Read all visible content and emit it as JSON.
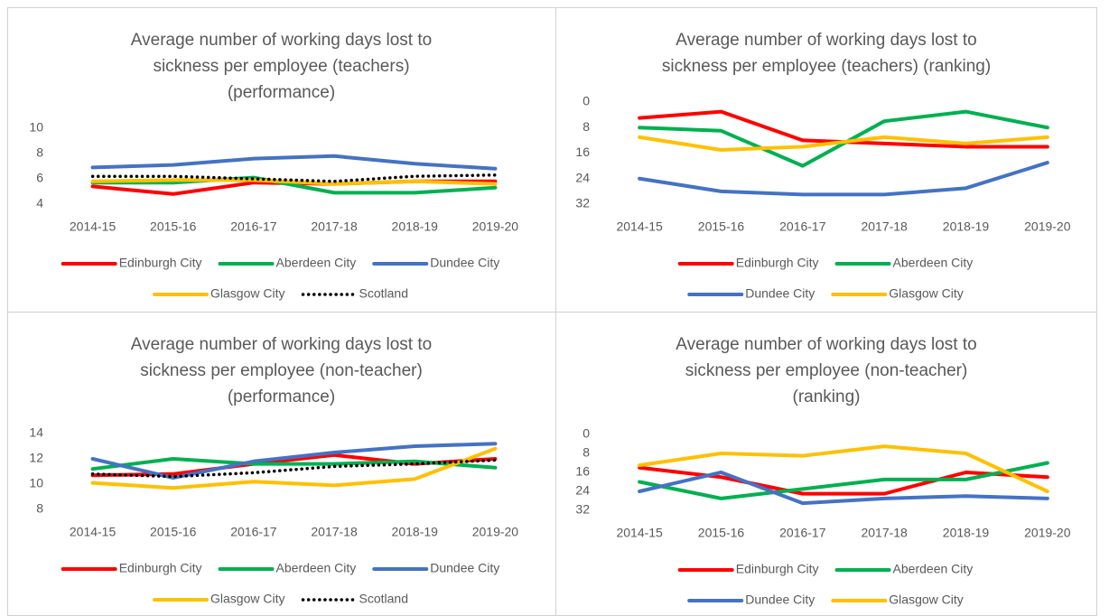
{
  "chart_data": [
    {
      "type": "line",
      "title": [
        "Average number of working days lost to",
        "sickness per employee (teachers)",
        "(performance)"
      ],
      "categories": [
        "2014-15",
        "2015-16",
        "2016-17",
        "2017-18",
        "2018-19",
        "2019-20"
      ],
      "ylim": [
        4,
        10
      ],
      "yticks": [
        4,
        6,
        8,
        10
      ],
      "series": [
        {
          "name": "Edinburgh City",
          "color": "#ff0000",
          "values": [
            5.4,
            4.8,
            5.7,
            5.6,
            5.8,
            5.8
          ]
        },
        {
          "name": "Aberdeen City",
          "color": "#00b050",
          "values": [
            5.7,
            5.7,
            6.1,
            4.9,
            4.9,
            5.3
          ]
        },
        {
          "name": "Dundee City",
          "color": "#4472c4",
          "values": [
            6.9,
            7.1,
            7.6,
            7.8,
            7.2,
            6.8
          ]
        },
        {
          "name": "Glasgow City",
          "color": "#ffc000",
          "values": [
            5.8,
            5.9,
            5.9,
            5.6,
            5.8,
            5.6
          ]
        },
        {
          "name": "Scotland",
          "color": "#000000",
          "line_style": "dotted",
          "values": [
            6.2,
            6.2,
            6.0,
            5.8,
            6.2,
            6.3
          ]
        }
      ]
    },
    {
      "type": "line",
      "title": [
        "Average number of working days lost to",
        "sickness per employee (teachers) (ranking)"
      ],
      "categories": [
        "2014-15",
        "2015-16",
        "2016-17",
        "2017-18",
        "2018-19",
        "2019-20"
      ],
      "ylim": [
        0,
        32
      ],
      "y_inverted": true,
      "yticks": [
        0,
        8,
        16,
        24,
        32
      ],
      "series": [
        {
          "name": "Edinburgh City",
          "color": "#ff0000",
          "values": [
            5,
            3,
            12,
            13,
            14,
            14
          ]
        },
        {
          "name": "Aberdeen City",
          "color": "#00b050",
          "values": [
            8,
            9,
            20,
            6,
            3,
            8
          ]
        },
        {
          "name": "Dundee City",
          "color": "#4472c4",
          "values": [
            24,
            28,
            29,
            29,
            27,
            19
          ]
        },
        {
          "name": "Glasgow City",
          "color": "#ffc000",
          "values": [
            11,
            15,
            14,
            11,
            13,
            11
          ]
        }
      ]
    },
    {
      "type": "line",
      "title": [
        "Average number of working days lost to",
        "sickness per employee (non-teacher)",
        "(performance)"
      ],
      "categories": [
        "2014-15",
        "2015-16",
        "2016-17",
        "2017-18",
        "2018-19",
        "2019-20"
      ],
      "ylim": [
        8,
        14
      ],
      "yticks": [
        8,
        10,
        12,
        14
      ],
      "series": [
        {
          "name": "Edinburgh City",
          "color": "#ff0000",
          "values": [
            10.7,
            10.8,
            11.6,
            12.3,
            11.6,
            12.0
          ]
        },
        {
          "name": "Aberdeen City",
          "color": "#00b050",
          "values": [
            11.2,
            12.0,
            11.6,
            11.6,
            11.8,
            11.3
          ]
        },
        {
          "name": "Dundee City",
          "color": "#4472c4",
          "values": [
            12.0,
            10.5,
            11.8,
            12.5,
            13.0,
            13.2
          ]
        },
        {
          "name": "Glasgow City",
          "color": "#ffc000",
          "values": [
            10.1,
            9.7,
            10.2,
            9.9,
            10.4,
            12.8
          ]
        },
        {
          "name": "Scotland",
          "color": "#000000",
          "line_style": "dotted",
          "values": [
            10.8,
            10.6,
            10.9,
            11.4,
            11.6,
            11.9
          ]
        }
      ]
    },
    {
      "type": "line",
      "title": [
        "Average number of working days lost to",
        "sickness per employee (non-teacher)",
        "(ranking)"
      ],
      "categories": [
        "2014-15",
        "2015-16",
        "2016-17",
        "2017-18",
        "2018-19",
        "2019-20"
      ],
      "ylim": [
        0,
        32
      ],
      "y_inverted": true,
      "yticks": [
        0,
        8,
        16,
        24,
        32
      ],
      "series": [
        {
          "name": "Edinburgh City",
          "color": "#ff0000",
          "values": [
            14,
            18,
            25,
            25,
            16,
            18
          ]
        },
        {
          "name": "Aberdeen City",
          "color": "#00b050",
          "values": [
            20,
            27,
            23,
            19,
            19,
            12
          ]
        },
        {
          "name": "Dundee City",
          "color": "#4472c4",
          "values": [
            24,
            16,
            29,
            27,
            26,
            27
          ]
        },
        {
          "name": "Glasgow City",
          "color": "#ffc000",
          "values": [
            13,
            8,
            9,
            5,
            8,
            24
          ]
        }
      ]
    }
  ]
}
